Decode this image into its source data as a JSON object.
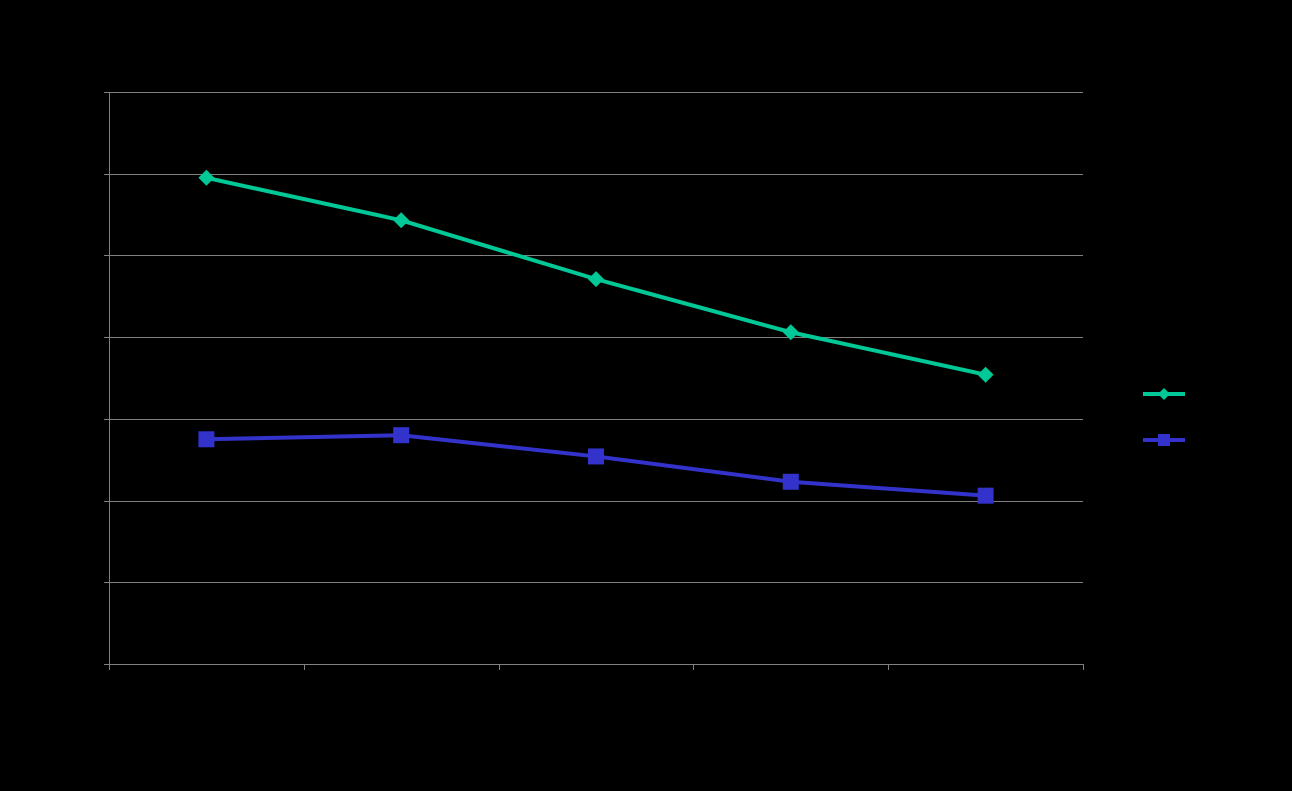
{
  "chart_data": {
    "type": "line",
    "title": "",
    "xlabel": "",
    "ylabel": "",
    "categories": [
      "",
      "",
      "",
      "",
      ""
    ],
    "ylim": [
      0,
      7
    ],
    "y_tick_count": 8,
    "grid": true,
    "legend_position": "right",
    "series": [
      {
        "color": "#00c896",
        "marker": "diamond",
        "values": [
          5.95,
          5.43,
          4.71,
          4.06,
          3.54
        ]
      },
      {
        "color": "#3333cc",
        "marker": "square",
        "values": [
          2.75,
          2.8,
          2.54,
          2.23,
          2.06
        ]
      }
    ]
  },
  "colors": {
    "background": "#000000",
    "grid": "#808080",
    "axis": "#808080"
  }
}
